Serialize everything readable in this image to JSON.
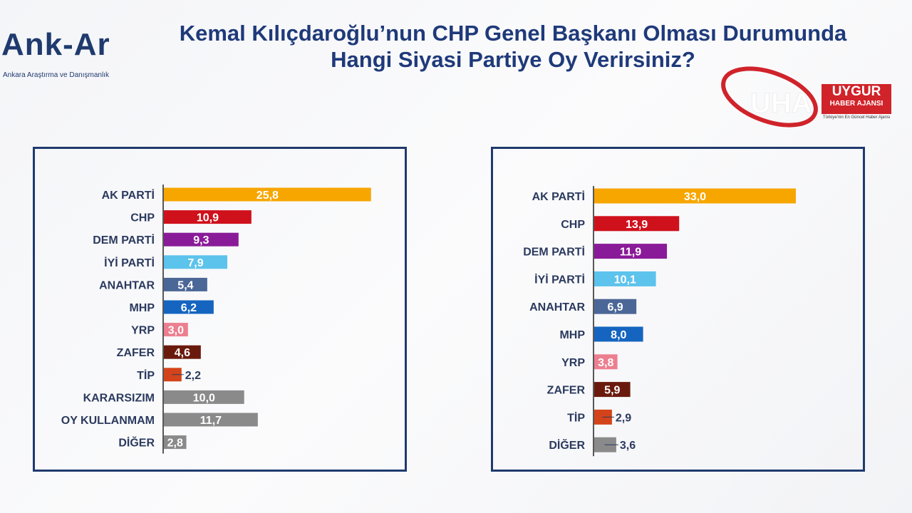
{
  "header": {
    "title_line1": "Kemal Kılıçdaroğlu’nun CHP Genel Başkanı Olması Durumunda",
    "title_line2": "Hangi Siyasi Partiye Oy Verirsiniz?"
  },
  "logo_left": {
    "brand": "Ank-Ar",
    "subtitle": "Ankara Araştırma ve Danışmanlık"
  },
  "logo_right": {
    "mark": "UHA",
    "name1": "UYGUR",
    "name2": "HABER AJANSI",
    "tagline": "Türkiye'nin En Güncel Haber Ajansı",
    "accent": "#d0232a"
  },
  "chart_data": [
    {
      "type": "bar",
      "orientation": "horizontal",
      "xlim": [
        0,
        26
      ],
      "categories": [
        "AK PARTİ",
        "CHP",
        "DEM PARTİ",
        "İYİ PARTİ",
        "ANAHTAR",
        "MHP",
        "YRP",
        "ZAFER",
        "TİP",
        "KARARSIZIM",
        "OY KULLANMAM",
        "DİĞER"
      ],
      "values": [
        25.8,
        10.9,
        9.3,
        7.9,
        5.4,
        6.2,
        3.0,
        4.6,
        2.2,
        10.0,
        11.7,
        2.8
      ],
      "labels": [
        "25,8",
        "10,9",
        "9,3",
        "7,9",
        "5,4",
        "6,2",
        "3,0",
        "4,6",
        "2,2",
        "10,0",
        "11,7",
        "2,8"
      ],
      "label_outside": [
        false,
        false,
        false,
        false,
        false,
        false,
        false,
        false,
        true,
        false,
        false,
        false
      ],
      "colors": [
        "#f7a600",
        "#cf111c",
        "#8a1b98",
        "#5cc3ec",
        "#4b6797",
        "#1565c0",
        "#ec7f8f",
        "#6a1a0d",
        "#d4441a",
        "#8a8a8a",
        "#8a8a8a",
        "#8a8a8a"
      ]
    },
    {
      "type": "bar",
      "orientation": "horizontal",
      "xlim": [
        0,
        33
      ],
      "categories": [
        "AK PARTİ",
        "CHP",
        "DEM PARTİ",
        "İYİ PARTİ",
        "ANAHTAR",
        "MHP",
        "YRP",
        "ZAFER",
        "TİP",
        "DİĞER"
      ],
      "values": [
        33.0,
        13.9,
        11.9,
        10.1,
        6.9,
        8.0,
        3.8,
        5.9,
        2.9,
        3.6
      ],
      "labels": [
        "33,0",
        "13,9",
        "11,9",
        "10,1",
        "6,9",
        "8,0",
        "3,8",
        "5,9",
        "2,9",
        "3,6"
      ],
      "label_outside": [
        false,
        false,
        false,
        false,
        false,
        false,
        false,
        false,
        true,
        true
      ],
      "colors": [
        "#f7a600",
        "#cf111c",
        "#8a1b98",
        "#5cc3ec",
        "#4b6797",
        "#1565c0",
        "#ec7f8f",
        "#6a1a0d",
        "#d4441a",
        "#8a8a8a"
      ]
    }
  ]
}
